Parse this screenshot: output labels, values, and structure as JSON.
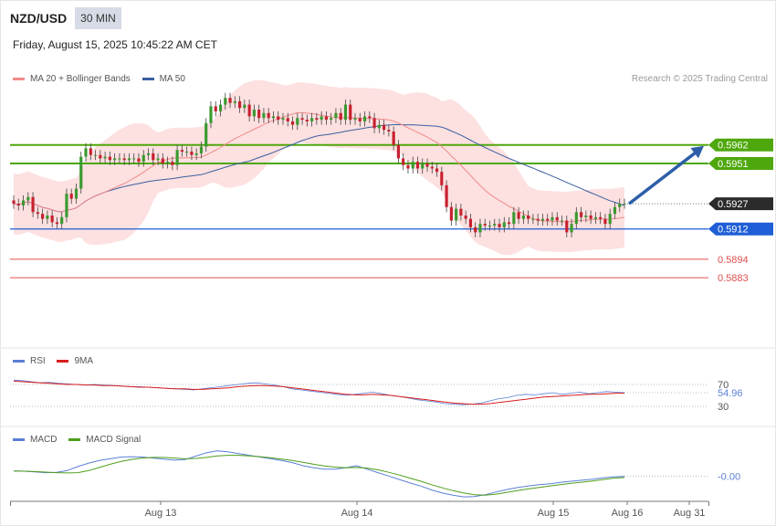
{
  "header": {
    "pair": "NZD/USD",
    "timeframe": "30 MIN",
    "datetime": "Friday, August 15, 2025 10:45:22 AM CET",
    "credit": "Research © 2025 Trading Central"
  },
  "colors": {
    "ma20": "#f08a8a",
    "bollinger_fill": "#fde0e0",
    "ma50": "#3a5fa0",
    "resistance": "#4ea70c",
    "support": "#1f5ed6",
    "target": "#e05050",
    "bull": "#3a9a2f",
    "bear": "#c8202f",
    "arrow": "#2d5fa8",
    "rsi": "#5b7fd6",
    "rsi_ma": "#d81e1e",
    "macd": "#5b7fd6",
    "macd_signal": "#4e9e1a"
  },
  "chart_data": [
    {
      "type": "candlestick",
      "legend": [
        "MA 20 + Bollinger Bands",
        "MA 50"
      ],
      "x_tick_labels": [
        "Aug 13",
        "Aug 14",
        "Aug 15",
        "Aug 16",
        "Aug 31"
      ],
      "ylim": [
        0.587,
        0.5995
      ],
      "current_price": "0.5927",
      "levels": [
        {
          "label": "0.5962",
          "value": 0.5962,
          "kind": "resistance"
        },
        {
          "label": "0.5951",
          "value": 0.5951,
          "kind": "resistance"
        },
        {
          "label": "0.5912",
          "value": 0.5912,
          "kind": "support"
        },
        {
          "label": "0.5894",
          "value": 0.5894,
          "kind": "target"
        },
        {
          "label": "0.5883",
          "value": 0.5883,
          "kind": "target"
        }
      ],
      "arrow": {
        "from": 0.5927,
        "to": 0.5962
      },
      "candles": [
        [
          0.5929,
          0.5927
        ],
        [
          0.5927,
          0.5926
        ],
        [
          0.5926,
          0.5929
        ],
        [
          0.5929,
          0.5931
        ],
        [
          0.5931,
          0.5922
        ],
        [
          0.5922,
          0.5921
        ],
        [
          0.5921,
          0.5918
        ],
        [
          0.5918,
          0.592
        ],
        [
          0.592,
          0.5916
        ],
        [
          0.5916,
          0.5915
        ],
        [
          0.5915,
          0.5919
        ],
        [
          0.5919,
          0.5933
        ],
        [
          0.5933,
          0.593
        ],
        [
          0.593,
          0.5936
        ],
        [
          0.5936,
          0.5955
        ],
        [
          0.5955,
          0.596
        ],
        [
          0.596,
          0.5956
        ],
        [
          0.5956,
          0.5956
        ],
        [
          0.5956,
          0.5954
        ],
        [
          0.5954,
          0.5955
        ],
        [
          0.5955,
          0.5953
        ],
        [
          0.5953,
          0.5954
        ],
        [
          0.5954,
          0.5954
        ],
        [
          0.5954,
          0.5953
        ],
        [
          0.5953,
          0.5954
        ],
        [
          0.5954,
          0.5954
        ],
        [
          0.5954,
          0.5952
        ],
        [
          0.5952,
          0.5956
        ],
        [
          0.5956,
          0.5957
        ],
        [
          0.5957,
          0.5953
        ],
        [
          0.5953,
          0.5954
        ],
        [
          0.5954,
          0.5951
        ],
        [
          0.5951,
          0.5952
        ],
        [
          0.5952,
          0.595
        ],
        [
          0.595,
          0.5959
        ],
        [
          0.5959,
          0.5958
        ],
        [
          0.5958,
          0.5958
        ],
        [
          0.5958,
          0.5956
        ],
        [
          0.5956,
          0.5957
        ],
        [
          0.5957,
          0.5961
        ],
        [
          0.5961,
          0.5975
        ],
        [
          0.5975,
          0.5985
        ],
        [
          0.5985,
          0.5982
        ],
        [
          0.5982,
          0.5986
        ],
        [
          0.5986,
          0.599
        ],
        [
          0.599,
          0.5987
        ],
        [
          0.5987,
          0.5988
        ],
        [
          0.5988,
          0.5984
        ],
        [
          0.5984,
          0.5986
        ],
        [
          0.5986,
          0.5979
        ],
        [
          0.5979,
          0.5983
        ],
        [
          0.5983,
          0.5978
        ],
        [
          0.5978,
          0.5981
        ],
        [
          0.5981,
          0.5978
        ],
        [
          0.5978,
          0.5979
        ],
        [
          0.5979,
          0.5977
        ],
        [
          0.5977,
          0.5978
        ],
        [
          0.5978,
          0.5976
        ],
        [
          0.5976,
          0.5974
        ],
        [
          0.5974,
          0.5978
        ],
        [
          0.5978,
          0.5977
        ],
        [
          0.5977,
          0.5976
        ],
        [
          0.5976,
          0.5978
        ],
        [
          0.5978,
          0.5977
        ],
        [
          0.5977,
          0.5979
        ],
        [
          0.5979,
          0.5977
        ],
        [
          0.5977,
          0.5978
        ],
        [
          0.5978,
          0.5981
        ],
        [
          0.5981,
          0.5977
        ],
        [
          0.5977,
          0.5986
        ],
        [
          0.5986,
          0.5977
        ],
        [
          0.5977,
          0.5978
        ],
        [
          0.5978,
          0.5976
        ],
        [
          0.5976,
          0.5979
        ],
        [
          0.5979,
          0.5978
        ],
        [
          0.5978,
          0.5972
        ],
        [
          0.5972,
          0.5974
        ],
        [
          0.5974,
          0.5971
        ],
        [
          0.5971,
          0.597
        ],
        [
          0.597,
          0.5962
        ],
        [
          0.5962,
          0.5954
        ],
        [
          0.5954,
          0.595
        ],
        [
          0.595,
          0.5948
        ],
        [
          0.5948,
          0.5952
        ],
        [
          0.5952,
          0.5948
        ],
        [
          0.5948,
          0.5951
        ],
        [
          0.5951,
          0.5949
        ],
        [
          0.5949,
          0.5948
        ],
        [
          0.5948,
          0.5946
        ],
        [
          0.5946,
          0.5938
        ],
        [
          0.5938,
          0.5925
        ],
        [
          0.5925,
          0.5917
        ],
        [
          0.5917,
          0.5924
        ],
        [
          0.5924,
          0.592
        ],
        [
          0.592,
          0.5918
        ],
        [
          0.5918,
          0.5913
        ],
        [
          0.5913,
          0.591
        ],
        [
          0.591,
          0.5915
        ],
        [
          0.5915,
          0.5914
        ],
        [
          0.5914,
          0.5914
        ],
        [
          0.5914,
          0.5915
        ],
        [
          0.5915,
          0.5913
        ],
        [
          0.5913,
          0.5916
        ],
        [
          0.5916,
          0.5915
        ],
        [
          0.5915,
          0.5922
        ],
        [
          0.5922,
          0.5918
        ],
        [
          0.5918,
          0.592
        ],
        [
          0.592,
          0.5918
        ],
        [
          0.5918,
          0.5918
        ],
        [
          0.5918,
          0.5917
        ],
        [
          0.5917,
          0.5918
        ],
        [
          0.5918,
          0.5917
        ],
        [
          0.5917,
          0.5919
        ],
        [
          0.5919,
          0.5917
        ],
        [
          0.5917,
          0.5917
        ],
        [
          0.5917,
          0.591
        ],
        [
          0.591,
          0.5915
        ],
        [
          0.5915,
          0.5922
        ],
        [
          0.5922,
          0.5919
        ],
        [
          0.5919,
          0.592
        ],
        [
          0.592,
          0.5918
        ],
        [
          0.5918,
          0.5919
        ],
        [
          0.5919,
          0.5918
        ],
        [
          0.5918,
          0.5915
        ],
        [
          0.5915,
          0.5921
        ],
        [
          0.5921,
          0.5925
        ],
        [
          0.5925,
          0.5927
        ],
        [
          0.5927,
          0.5927
        ]
      ]
    },
    {
      "type": "line",
      "legend": [
        "RSI",
        "9MA"
      ],
      "ylim": [
        0,
        100
      ],
      "levels": [
        {
          "label": "70",
          "value": 70
        },
        {
          "label": "30",
          "value": 30
        }
      ],
      "current_value": "54.96",
      "series": [
        {
          "name": "RSI",
          "values": [
            78,
            77,
            75,
            73,
            74,
            72,
            71,
            70,
            69,
            70,
            69,
            68,
            67,
            66,
            66,
            65,
            64,
            63,
            62,
            61,
            60,
            62,
            64,
            66,
            68,
            70,
            72,
            73,
            71,
            69,
            66,
            62,
            60,
            58,
            56,
            54,
            52,
            50,
            52,
            54,
            56,
            53,
            50,
            48,
            45,
            42,
            40,
            38,
            35,
            34,
            33,
            34,
            36,
            40,
            44,
            46,
            50,
            52,
            51,
            53,
            55,
            52,
            54,
            56,
            53,
            55,
            57,
            56,
            55
          ]
        },
        {
          "name": "9MA",
          "values": [
            76,
            75,
            74,
            73,
            72,
            71,
            70,
            70,
            69,
            69,
            68,
            68,
            67,
            66,
            65,
            65,
            64,
            63,
            62,
            62,
            61,
            61,
            62,
            63,
            64,
            66,
            67,
            68,
            68,
            67,
            66,
            64,
            62,
            60,
            58,
            56,
            54,
            52,
            51,
            51,
            52,
            51,
            50,
            48,
            46,
            44,
            42,
            40,
            38,
            36,
            35,
            34,
            34,
            35,
            37,
            39,
            41,
            43,
            45,
            47,
            48,
            49,
            50,
            51,
            52,
            52,
            53,
            54,
            54
          ]
        }
      ]
    },
    {
      "type": "line",
      "legend": [
        "MACD",
        "MACD Signal"
      ],
      "current_value": "-0.00",
      "series": [
        {
          "name": "MACD",
          "values": [
            0.0003,
            0.00028,
            0.00024,
            0.0002,
            0.00022,
            0.00032,
            0.00055,
            0.00075,
            0.0009,
            0.001,
            0.0011,
            0.00112,
            0.0011,
            0.00104,
            0.00098,
            0.00092,
            0.00095,
            0.00115,
            0.00135,
            0.00145,
            0.0014,
            0.0013,
            0.0012,
            0.0011,
            0.001,
            0.0009,
            0.00078,
            0.0006,
            0.00048,
            0.0004,
            0.0004,
            0.00048,
            0.0006,
            0.0004,
            0.0002,
            0.0,
            -0.0002,
            -0.0004,
            -0.00058,
            -0.0008,
            -0.00098,
            -0.0011,
            -0.0012,
            -0.00118,
            -0.00108,
            -0.00092,
            -0.00078,
            -0.00066,
            -0.00058,
            -0.0005,
            -0.00045,
            -0.00036,
            -0.0003,
            -0.00024,
            -0.00018,
            -0.0001,
            -4e-05,
            -2e-05
          ]
        },
        {
          "name": "MACD Signal",
          "values": [
            0.0003,
            0.00028,
            0.00026,
            0.00023,
            0.0002,
            0.00018,
            0.0002,
            0.00032,
            0.0005,
            0.00068,
            0.00084,
            0.00096,
            0.00104,
            0.00108,
            0.00108,
            0.00104,
            0.001,
            0.00102,
            0.00108,
            0.00116,
            0.0012,
            0.0012,
            0.00117,
            0.00112,
            0.00106,
            0.00098,
            0.0009,
            0.0008,
            0.00068,
            0.00058,
            0.00052,
            0.00048,
            0.0005,
            0.00046,
            0.00036,
            0.00022,
            6e-05,
            -0.00012,
            -0.0003,
            -0.0005,
            -0.00068,
            -0.00084,
            -0.00098,
            -0.00108,
            -0.0011,
            -0.00104,
            -0.00094,
            -0.00084,
            -0.00074,
            -0.00066,
            -0.00058,
            -0.0005,
            -0.00042,
            -0.00035,
            -0.00028,
            -0.0002,
            -0.00012,
            -8e-05
          ]
        }
      ]
    }
  ]
}
